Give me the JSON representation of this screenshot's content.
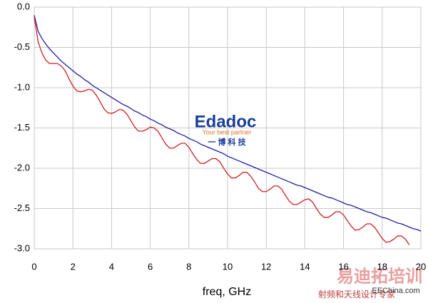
{
  "chart_data": {
    "type": "line",
    "x_label": "freq, GHz",
    "x": [
      0,
      0.2,
      0.4,
      0.6,
      0.8,
      1,
      1.2,
      1.4,
      1.6,
      1.8,
      2,
      2.2,
      2.4,
      2.6,
      2.8,
      3,
      3.2,
      3.4,
      3.6,
      3.8,
      4,
      4.2,
      4.4,
      4.6,
      4.8,
      5,
      5.2,
      5.4,
      5.6,
      5.8,
      6,
      6.2,
      6.4,
      6.6,
      6.8,
      7,
      7.2,
      7.4,
      7.6,
      7.8,
      8,
      8.2,
      8.4,
      8.6,
      8.8,
      9,
      9.2,
      9.4,
      9.6,
      9.8,
      10,
      10.2,
      10.4,
      10.6,
      10.8,
      11,
      11.2,
      11.4,
      11.6,
      11.8,
      12,
      12.2,
      12.4,
      12.6,
      12.8,
      13,
      13.2,
      13.4,
      13.6,
      13.8,
      14,
      14.2,
      14.4,
      14.6,
      14.8,
      15,
      15.2,
      15.4,
      15.6,
      15.8,
      16,
      16.2,
      16.4,
      16.6,
      16.8,
      17,
      17.2,
      17.4,
      17.6,
      17.8,
      18,
      18.2,
      18.4,
      18.6,
      18.8,
      19,
      19.2,
      19.4,
      19.6,
      19.8,
      20
    ],
    "series": [
      {
        "color": "#1f1fa0",
        "values": [
          -0.1,
          -0.3,
          -0.39,
          -0.46,
          -0.52,
          -0.57,
          -0.62,
          -0.67,
          -0.71,
          -0.75,
          -0.79,
          -0.83,
          -0.86,
          -0.9,
          -0.93,
          -0.97,
          -1.0,
          -1.03,
          -1.06,
          -1.09,
          -1.12,
          -1.15,
          -1.18,
          -1.21,
          -1.23,
          -1.26,
          -1.29,
          -1.31,
          -1.34,
          -1.36,
          -1.39,
          -1.41,
          -1.44,
          -1.46,
          -1.49,
          -1.51,
          -1.53,
          -1.56,
          -1.58,
          -1.6,
          -1.63,
          -1.65,
          -1.67,
          -1.7,
          -1.72,
          -1.74,
          -1.76,
          -1.78,
          -1.8,
          -1.82,
          -1.85,
          -1.87,
          -1.89,
          -1.91,
          -1.93,
          -1.95,
          -1.97,
          -1.99,
          -2.01,
          -2.03,
          -2.05,
          -2.07,
          -2.09,
          -2.11,
          -2.13,
          -2.15,
          -2.17,
          -2.19,
          -2.21,
          -2.22,
          -2.24,
          -2.26,
          -2.28,
          -2.3,
          -2.32,
          -2.34,
          -2.36,
          -2.37,
          -2.39,
          -2.41,
          -2.43,
          -2.45,
          -2.46,
          -2.48,
          -2.5,
          -2.52,
          -2.54,
          -2.55,
          -2.57,
          -2.59,
          -2.61,
          -2.62,
          -2.64,
          -2.66,
          -2.68,
          -2.69,
          -2.71,
          -2.73,
          -2.75,
          -2.76,
          -2.78
        ]
      },
      {
        "color": "#cc2020",
        "values": [
          -0.12,
          -0.43,
          -0.57,
          -0.66,
          -0.7,
          -0.7,
          -0.7,
          -0.73,
          -0.79,
          -0.89,
          -0.98,
          -1.04,
          -1.05,
          -1.04,
          -1.02,
          -1.03,
          -1.09,
          -1.17,
          -1.26,
          -1.31,
          -1.32,
          -1.3,
          -1.27,
          -1.28,
          -1.33,
          -1.41,
          -1.49,
          -1.54,
          -1.54,
          -1.52,
          -1.49,
          -1.5,
          -1.54,
          -1.62,
          -1.7,
          -1.75,
          -1.75,
          -1.72,
          -1.69,
          -1.69,
          -1.74,
          -1.82,
          -1.89,
          -1.94,
          -1.94,
          -1.91,
          -1.88,
          -1.88,
          -1.92,
          -2.0,
          -2.07,
          -2.12,
          -2.12,
          -2.09,
          -2.05,
          -2.05,
          -2.1,
          -2.17,
          -2.25,
          -2.29,
          -2.29,
          -2.26,
          -2.22,
          -2.22,
          -2.26,
          -2.34,
          -2.41,
          -2.45,
          -2.45,
          -2.42,
          -2.39,
          -2.38,
          -2.42,
          -2.5,
          -2.57,
          -2.61,
          -2.61,
          -2.58,
          -2.54,
          -2.54,
          -2.58,
          -2.65,
          -2.72,
          -2.77,
          -2.76,
          -2.73,
          -2.69,
          -2.69,
          -2.73,
          -2.8,
          -2.87,
          -2.92,
          -2.91,
          -2.88,
          -2.84,
          -2.84,
          -2.88,
          -2.95,
          null,
          null,
          null
        ]
      }
    ],
    "xlim": [
      0,
      20
    ],
    "ylim": [
      -3,
      0
    ],
    "xticks": [
      0,
      2,
      4,
      6,
      8,
      10,
      12,
      14,
      16,
      18,
      20
    ],
    "yticks": [
      {
        "value": 0,
        "label": "0.0"
      },
      -0.5,
      {
        "value": -1,
        "label": "-1.0"
      },
      -1.5,
      {
        "value": -2,
        "label": "-2.0"
      },
      -2.5,
      {
        "value": -3,
        "label": "-3.0"
      }
    ],
    "grid": true,
    "annotations": [
      "Edadoc",
      "Your best partner",
      "一 博 科 技",
      "易迪拓培训",
      "射频和天线设计专家",
      "EEChina.com"
    ]
  }
}
